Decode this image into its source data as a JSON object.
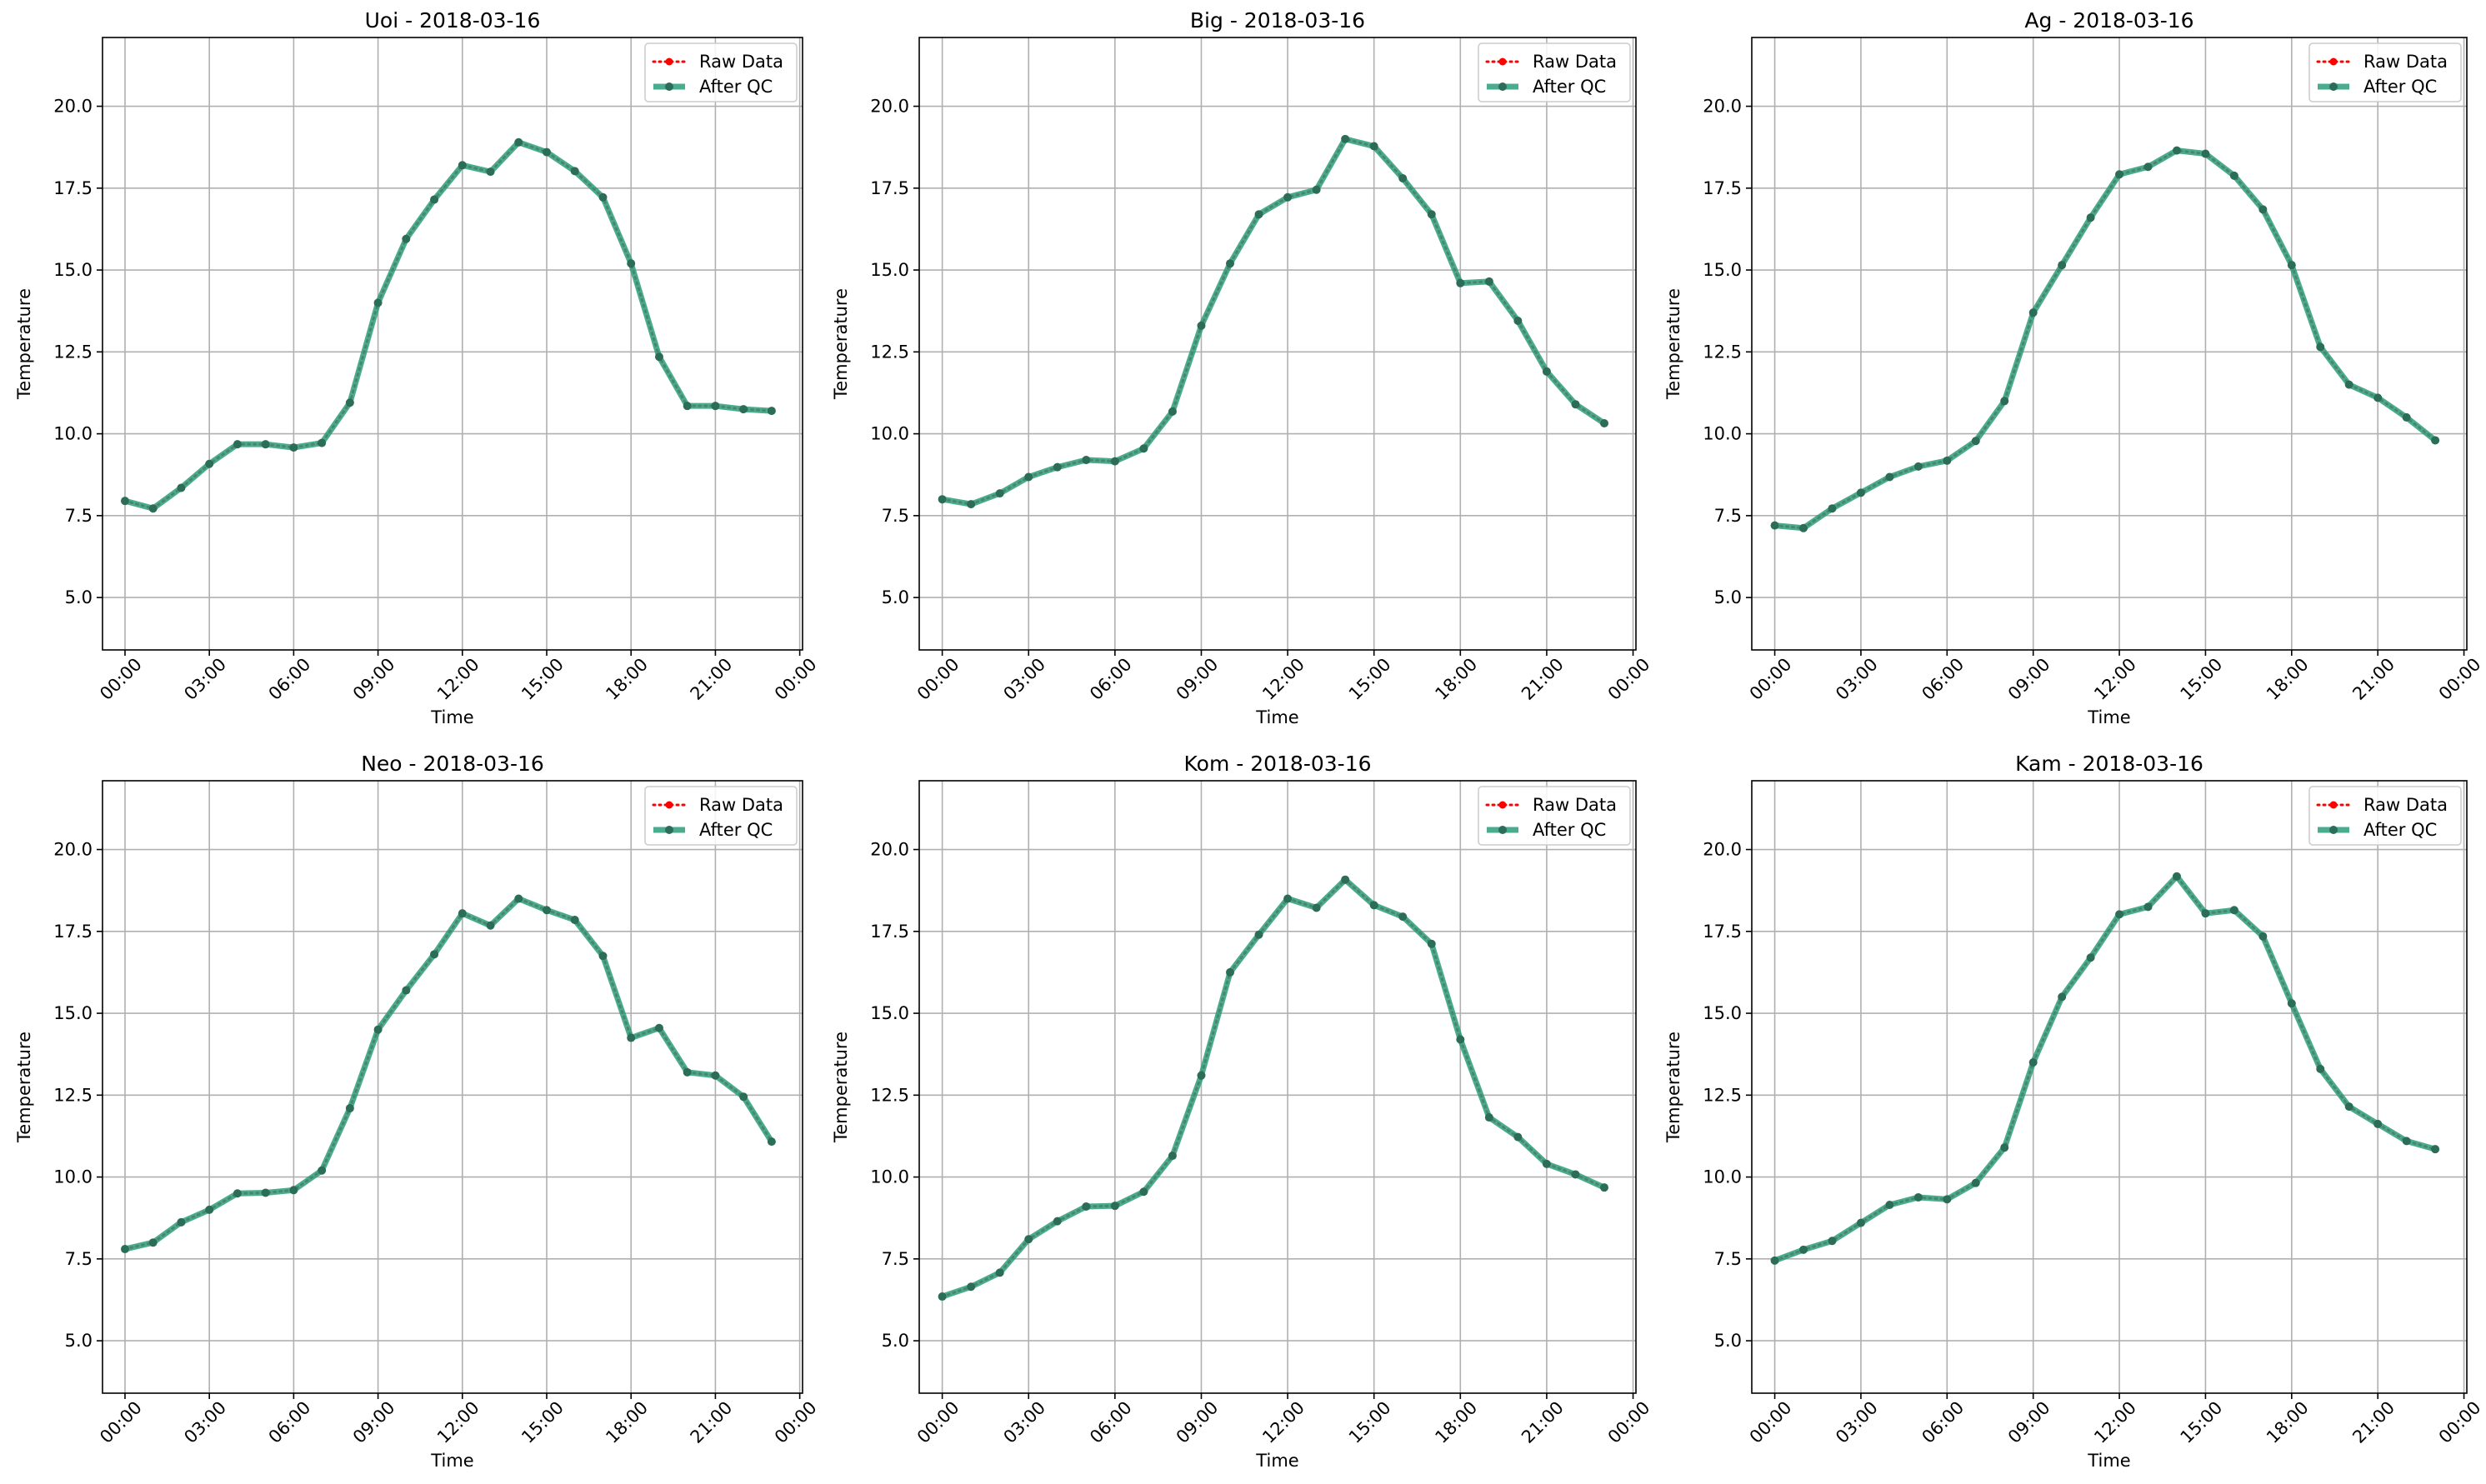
{
  "legend": {
    "raw_label": "Raw Data",
    "qc_label": "After QC",
    "placement": "upper-right"
  },
  "colors": {
    "raw": "#ff0000",
    "qc": "#2a9d7a",
    "qc_marker": "#2b6d58",
    "grid": "#b0b0b0"
  },
  "chart_data": [
    {
      "type": "line",
      "title": "Uoi - 2018-03-16",
      "xlabel": "Time",
      "ylabel": "Temperature",
      "xlim": [
        -0.8,
        24.1
      ],
      "ylim": [
        3.4,
        22.1
      ],
      "xticks": [
        0,
        3,
        6,
        9,
        12,
        15,
        18,
        21,
        24
      ],
      "xticklabels": [
        "00:00",
        "03:00",
        "06:00",
        "09:00",
        "12:00",
        "15:00",
        "18:00",
        "21:00",
        "00:00"
      ],
      "yticks": [
        5.0,
        7.5,
        10.0,
        12.5,
        15.0,
        17.5,
        20.0
      ],
      "yticklabels": [
        "5.0",
        "7.5",
        "10.0",
        "12.5",
        "15.0",
        "17.5",
        "20.0"
      ],
      "grid": true,
      "x": [
        0,
        1,
        2,
        3,
        4,
        5,
        6,
        7,
        8,
        9,
        10,
        11,
        12,
        13,
        14,
        15,
        16,
        17,
        18,
        19,
        20,
        21,
        22,
        23
      ],
      "series": [
        {
          "name": "Raw Data",
          "values": [
            7.95,
            7.72,
            8.35,
            9.08,
            9.68,
            9.68,
            9.58,
            9.72,
            10.95,
            14.0,
            15.95,
            17.15,
            18.2,
            18.0,
            18.9,
            18.6,
            18.02,
            17.22,
            15.2,
            12.35,
            10.85,
            10.85,
            10.75,
            10.7
          ]
        },
        {
          "name": "After QC",
          "values": [
            7.95,
            7.72,
            8.35,
            9.08,
            9.68,
            9.68,
            9.58,
            9.72,
            10.95,
            14.0,
            15.95,
            17.15,
            18.2,
            18.0,
            18.9,
            18.6,
            18.02,
            17.22,
            15.2,
            12.35,
            10.85,
            10.85,
            10.75,
            10.7
          ]
        }
      ]
    },
    {
      "type": "line",
      "title": "Big - 2018-03-16",
      "xlabel": "Time",
      "ylabel": "Temperature",
      "xlim": [
        -0.8,
        24.1
      ],
      "ylim": [
        3.4,
        22.1
      ],
      "xticks": [
        0,
        3,
        6,
        9,
        12,
        15,
        18,
        21,
        24
      ],
      "xticklabels": [
        "00:00",
        "03:00",
        "06:00",
        "09:00",
        "12:00",
        "15:00",
        "18:00",
        "21:00",
        "00:00"
      ],
      "yticks": [
        5.0,
        7.5,
        10.0,
        12.5,
        15.0,
        17.5,
        20.0
      ],
      "yticklabels": [
        "5.0",
        "7.5",
        "10.0",
        "12.5",
        "15.0",
        "17.5",
        "20.0"
      ],
      "grid": true,
      "x": [
        0,
        1,
        2,
        3,
        4,
        5,
        6,
        7,
        8,
        9,
        10,
        11,
        12,
        13,
        14,
        15,
        16,
        17,
        18,
        19,
        20,
        21,
        22,
        23
      ],
      "series": [
        {
          "name": "Raw Data",
          "values": [
            8.0,
            7.85,
            8.18,
            8.68,
            8.98,
            9.2,
            9.16,
            9.55,
            10.68,
            13.3,
            15.2,
            16.7,
            17.22,
            17.45,
            19.0,
            18.78,
            17.8,
            16.7,
            14.6,
            14.65,
            13.45,
            11.9,
            10.9,
            10.32
          ]
        },
        {
          "name": "After QC",
          "values": [
            8.0,
            7.85,
            8.18,
            8.68,
            8.98,
            9.2,
            9.16,
            9.55,
            10.68,
            13.3,
            15.2,
            16.7,
            17.22,
            17.45,
            19.0,
            18.78,
            17.8,
            16.7,
            14.6,
            14.65,
            13.45,
            11.9,
            10.9,
            10.32
          ]
        }
      ]
    },
    {
      "type": "line",
      "title": "Ag - 2018-03-16",
      "xlabel": "Time",
      "ylabel": "Temperature",
      "xlim": [
        -0.8,
        24.1
      ],
      "ylim": [
        3.4,
        22.1
      ],
      "xticks": [
        0,
        3,
        6,
        9,
        12,
        15,
        18,
        21,
        24
      ],
      "xticklabels": [
        "00:00",
        "03:00",
        "06:00",
        "09:00",
        "12:00",
        "15:00",
        "18:00",
        "21:00",
        "00:00"
      ],
      "yticks": [
        5.0,
        7.5,
        10.0,
        12.5,
        15.0,
        17.5,
        20.0
      ],
      "yticklabels": [
        "5.0",
        "7.5",
        "10.0",
        "12.5",
        "15.0",
        "17.5",
        "20.0"
      ],
      "grid": true,
      "x": [
        0,
        1,
        2,
        3,
        4,
        5,
        6,
        7,
        8,
        9,
        10,
        11,
        12,
        13,
        14,
        15,
        16,
        17,
        18,
        19,
        20,
        21,
        22,
        23
      ],
      "series": [
        {
          "name": "Raw Data",
          "values": [
            7.2,
            7.12,
            7.72,
            8.2,
            8.68,
            9.0,
            9.18,
            9.78,
            11.0,
            13.7,
            15.15,
            16.6,
            17.92,
            18.15,
            18.65,
            18.55,
            17.88,
            16.85,
            15.15,
            12.65,
            11.5,
            11.1,
            10.5,
            9.8
          ]
        },
        {
          "name": "After QC",
          "values": [
            7.2,
            7.12,
            7.72,
            8.2,
            8.68,
            9.0,
            9.18,
            9.78,
            11.0,
            13.7,
            15.15,
            16.6,
            17.92,
            18.15,
            18.65,
            18.55,
            17.88,
            16.85,
            15.15,
            12.65,
            11.5,
            11.1,
            10.5,
            9.8
          ]
        }
      ]
    },
    {
      "type": "line",
      "title": "Neo - 2018-03-16",
      "xlabel": "Time",
      "ylabel": "Temperature",
      "xlim": [
        -0.8,
        24.1
      ],
      "ylim": [
        3.4,
        22.1
      ],
      "xticks": [
        0,
        3,
        6,
        9,
        12,
        15,
        18,
        21,
        24
      ],
      "xticklabels": [
        "00:00",
        "03:00",
        "06:00",
        "09:00",
        "12:00",
        "15:00",
        "18:00",
        "21:00",
        "00:00"
      ],
      "yticks": [
        5.0,
        7.5,
        10.0,
        12.5,
        15.0,
        17.5,
        20.0
      ],
      "yticklabels": [
        "5.0",
        "7.5",
        "10.0",
        "12.5",
        "15.0",
        "17.5",
        "20.0"
      ],
      "grid": true,
      "x": [
        0,
        1,
        2,
        3,
        4,
        5,
        6,
        7,
        8,
        9,
        10,
        11,
        12,
        13,
        14,
        15,
        16,
        17,
        18,
        19,
        20,
        21,
        22,
        23
      ],
      "series": [
        {
          "name": "Raw Data",
          "values": [
            7.8,
            8.0,
            8.62,
            9.0,
            9.5,
            9.52,
            9.6,
            10.2,
            12.1,
            14.5,
            15.7,
            16.8,
            18.05,
            17.68,
            18.5,
            18.15,
            17.85,
            16.75,
            14.25,
            14.55,
            13.2,
            13.1,
            12.45,
            11.08
          ]
        },
        {
          "name": "After QC",
          "values": [
            7.8,
            8.0,
            8.62,
            9.0,
            9.5,
            9.52,
            9.6,
            10.2,
            12.1,
            14.5,
            15.7,
            16.8,
            18.05,
            17.68,
            18.5,
            18.15,
            17.85,
            16.75,
            14.25,
            14.55,
            13.2,
            13.1,
            12.45,
            11.08
          ]
        }
      ]
    },
    {
      "type": "line",
      "title": "Kom - 2018-03-16",
      "xlabel": "Time",
      "ylabel": "Temperature",
      "xlim": [
        -0.8,
        24.1
      ],
      "ylim": [
        3.4,
        22.1
      ],
      "xticks": [
        0,
        3,
        6,
        9,
        12,
        15,
        18,
        21,
        24
      ],
      "xticklabels": [
        "00:00",
        "03:00",
        "06:00",
        "09:00",
        "12:00",
        "15:00",
        "18:00",
        "21:00",
        "00:00"
      ],
      "yticks": [
        5.0,
        7.5,
        10.0,
        12.5,
        15.0,
        17.5,
        20.0
      ],
      "yticklabels": [
        "5.0",
        "7.5",
        "10.0",
        "12.5",
        "15.0",
        "17.5",
        "20.0"
      ],
      "grid": true,
      "x": [
        0,
        1,
        2,
        3,
        4,
        5,
        6,
        7,
        8,
        9,
        10,
        11,
        12,
        13,
        14,
        15,
        16,
        17,
        18,
        19,
        20,
        21,
        22,
        23
      ],
      "series": [
        {
          "name": "Raw Data",
          "values": [
            6.35,
            6.65,
            7.08,
            8.1,
            8.65,
            9.1,
            9.12,
            9.55,
            10.65,
            13.1,
            16.25,
            17.4,
            18.5,
            18.22,
            19.08,
            18.3,
            17.95,
            17.12,
            14.2,
            11.82,
            11.22,
            10.4,
            10.08,
            9.68
          ]
        },
        {
          "name": "After QC",
          "values": [
            6.35,
            6.65,
            7.08,
            8.1,
            8.65,
            9.1,
            9.12,
            9.55,
            10.65,
            13.1,
            16.25,
            17.4,
            18.5,
            18.22,
            19.08,
            18.3,
            17.95,
            17.12,
            14.2,
            11.82,
            11.22,
            10.4,
            10.08,
            9.68
          ]
        }
      ]
    },
    {
      "type": "line",
      "title": "Kam - 2018-03-16",
      "xlabel": "Time",
      "ylabel": "Temperature",
      "xlim": [
        -0.8,
        24.1
      ],
      "ylim": [
        3.4,
        22.1
      ],
      "xticks": [
        0,
        3,
        6,
        9,
        12,
        15,
        18,
        21,
        24
      ],
      "xticklabels": [
        "00:00",
        "03:00",
        "06:00",
        "09:00",
        "12:00",
        "15:00",
        "18:00",
        "21:00",
        "00:00"
      ],
      "yticks": [
        5.0,
        7.5,
        10.0,
        12.5,
        15.0,
        17.5,
        20.0
      ],
      "yticklabels": [
        "5.0",
        "7.5",
        "10.0",
        "12.5",
        "15.0",
        "17.5",
        "20.0"
      ],
      "grid": true,
      "x": [
        0,
        1,
        2,
        3,
        4,
        5,
        6,
        7,
        8,
        9,
        10,
        11,
        12,
        13,
        14,
        15,
        16,
        17,
        18,
        19,
        20,
        21,
        22,
        23
      ],
      "series": [
        {
          "name": "Raw Data",
          "values": [
            7.45,
            7.78,
            8.05,
            8.6,
            9.15,
            9.38,
            9.32,
            9.82,
            10.9,
            13.5,
            15.5,
            16.7,
            18.02,
            18.25,
            19.18,
            18.05,
            18.15,
            17.35,
            15.3,
            13.3,
            12.15,
            11.62,
            11.1,
            10.85
          ]
        },
        {
          "name": "After QC",
          "values": [
            7.45,
            7.78,
            8.05,
            8.6,
            9.15,
            9.38,
            9.32,
            9.82,
            10.9,
            13.5,
            15.5,
            16.7,
            18.02,
            18.25,
            19.18,
            18.05,
            18.15,
            17.35,
            15.3,
            13.3,
            12.15,
            11.62,
            11.1,
            10.85
          ]
        }
      ]
    }
  ]
}
